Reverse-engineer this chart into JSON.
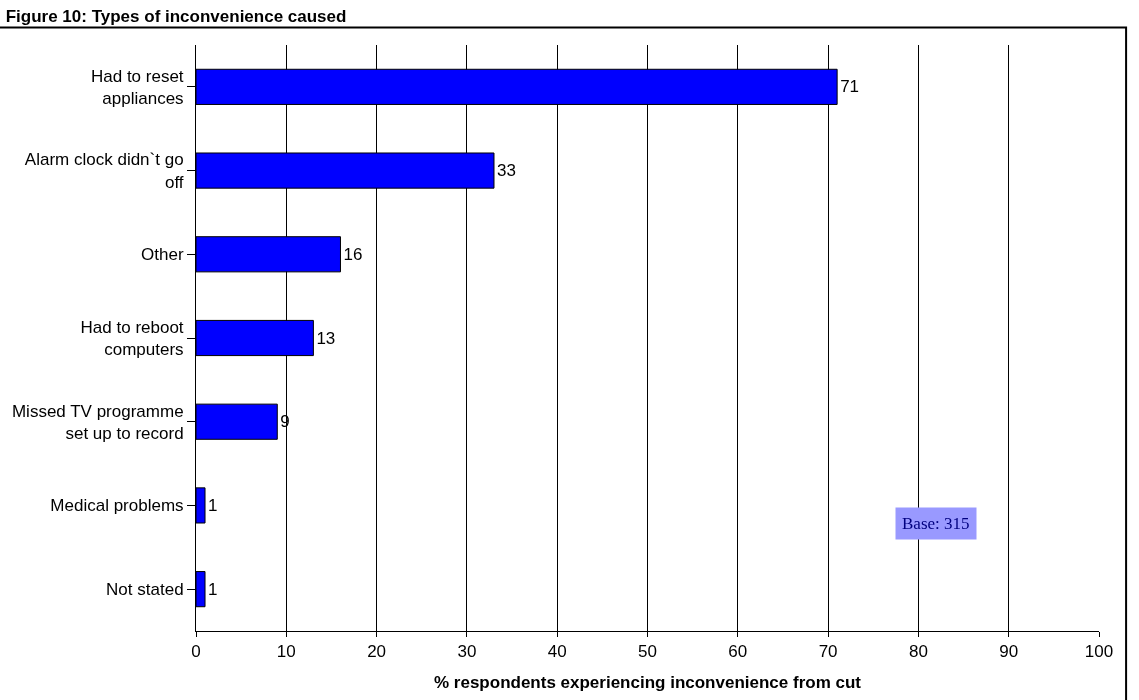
{
  "chart_data": {
    "type": "bar",
    "orientation": "horizontal",
    "title": "Figure 10: Types of inconvenience caused",
    "xlabel": "% respondents experiencing inconvenience from cut",
    "categories": [
      "Had to reset appliances",
      "Alarm clock didn`t go off",
      "Other",
      "Had to reboot computers",
      "Missed TV programme set up to record",
      "Medical problems",
      "Not stated"
    ],
    "values": [
      71,
      33,
      16,
      13,
      9,
      1,
      1
    ],
    "color": "#0000ff",
    "data_labels": true,
    "xlim": [
      0,
      100
    ],
    "xticks": [
      0,
      10,
      20,
      30,
      40,
      50,
      60,
      70,
      80,
      90,
      100
    ],
    "grid": "x",
    "legend": false,
    "annotations": [
      "Base: 315"
    ]
  }
}
